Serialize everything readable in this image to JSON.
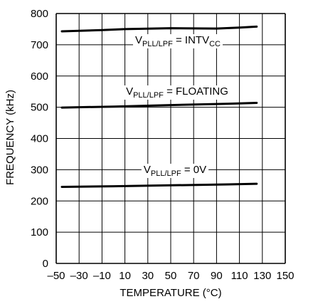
{
  "chart_data": {
    "type": "line",
    "title": "",
    "xlabel": "TEMPERATURE (°C)",
    "ylabel": "FREQUENCY (kHz)",
    "xlim": [
      -50,
      150
    ],
    "ylim": [
      0,
      800
    ],
    "x_ticks": [
      "–50",
      "–30",
      "–10",
      "10",
      "30",
      "50",
      "70",
      "90",
      "110",
      "130",
      "150"
    ],
    "y_ticks": [
      "0",
      "100",
      "200",
      "300",
      "400",
      "500",
      "600",
      "700",
      "800"
    ],
    "grid": true,
    "series": [
      {
        "label_main": "V",
        "label_sub": "PLL/LPF",
        "label_rest": " = INTV",
        "label_sub2": "CC",
        "x": [
          -45,
          -10,
          10,
          50,
          90,
          110,
          125
        ],
        "y": [
          743,
          747,
          750,
          753,
          752,
          755,
          758
        ]
      },
      {
        "label_main": "V",
        "label_sub": "PLL/LPF",
        "label_rest": " = FLOATING",
        "label_sub2": "",
        "x": [
          -45,
          0,
          50,
          100,
          125
        ],
        "y": [
          499,
          502,
          507,
          511,
          514
        ]
      },
      {
        "label_main": "V",
        "label_sub": "PLL/LPF",
        "label_rest": " = 0V",
        "label_sub2": "",
        "x": [
          -45,
          0,
          50,
          100,
          125
        ],
        "y": [
          245,
          247,
          250,
          253,
          255
        ]
      }
    ]
  }
}
